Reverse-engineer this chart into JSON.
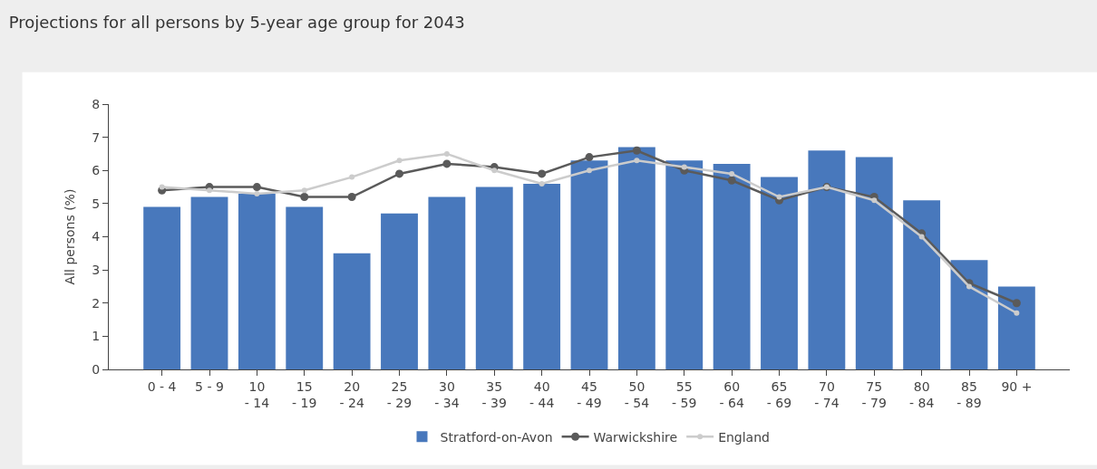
{
  "chart_data": {
    "type": "bar",
    "title": "Projections for all persons by 5-year age group for 2043",
    "ylabel": "All persons (%)",
    "categories": [
      "0 - 4",
      "5 - 9",
      "10\n- 14",
      "15\n- 19",
      "20\n- 24",
      "25\n- 29",
      "30\n- 34",
      "35\n- 39",
      "40\n- 44",
      "45\n- 49",
      "50\n- 54",
      "55\n- 59",
      "60\n- 64",
      "65\n- 69",
      "70\n- 74",
      "75\n- 79",
      "80\n- 84",
      "85\n- 89",
      "90 +"
    ],
    "series": [
      {
        "name": "Stratford-on-Avon",
        "color": "#4878bc",
        "values": [
          4.9,
          5.2,
          5.3,
          4.9,
          3.5,
          4.7,
          5.2,
          5.5,
          5.6,
          6.3,
          6.7,
          6.3,
          6.2,
          5.8,
          6.6,
          6.4,
          5.1,
          3.3,
          2.5
        ]
      },
      {
        "name": "Warwickshire",
        "type": "line",
        "color": "#5a5a5a",
        "values": [
          5.4,
          5.5,
          5.5,
          5.2,
          5.2,
          5.9,
          6.2,
          6.1,
          5.9,
          6.4,
          6.6,
          6.0,
          5.7,
          5.1,
          5.5,
          5.2,
          4.1,
          2.6,
          2.0
        ]
      },
      {
        "name": "England",
        "type": "line",
        "color": "#cccccc",
        "values": [
          5.5,
          5.4,
          5.3,
          5.4,
          5.8,
          6.3,
          6.5,
          6.0,
          5.6,
          6.0,
          6.3,
          6.1,
          5.9,
          5.2,
          5.5,
          5.1,
          4.0,
          2.5,
          1.7
        ]
      }
    ],
    "ylim": [
      0,
      8
    ],
    "yticks": [
      0,
      1,
      2,
      3,
      4,
      5,
      6,
      7,
      8
    ],
    "grid": false,
    "legend": "bottom",
    "marker": "circle",
    "line_style": "solid"
  }
}
